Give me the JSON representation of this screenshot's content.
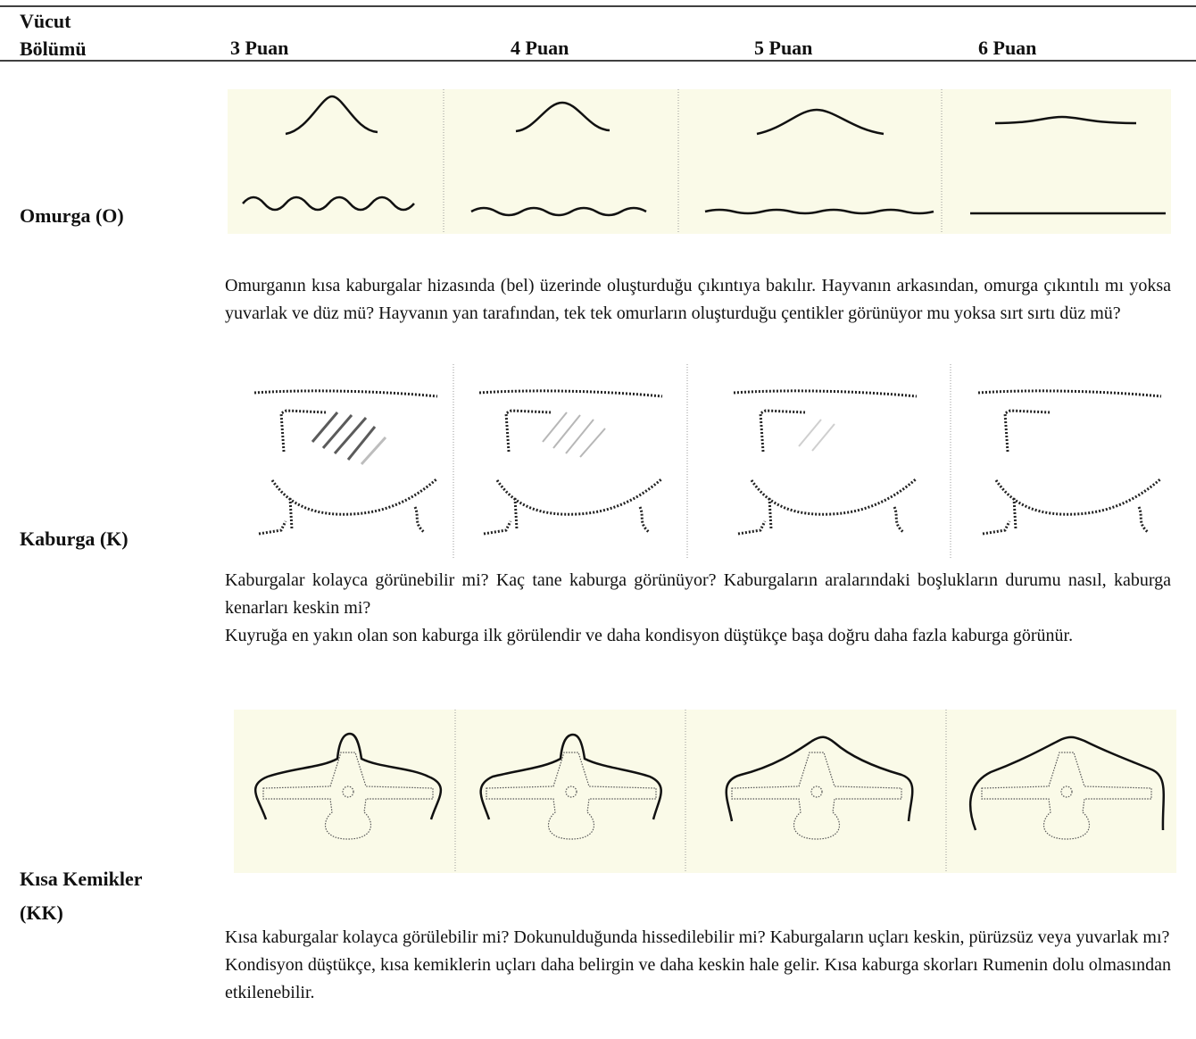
{
  "table": {
    "headers": [
      "Vücut Bölümü",
      "3 Puan",
      "4 Puan",
      "5 Puan",
      "6 Puan"
    ],
    "rows": [
      {
        "label": "Omurga (O)",
        "description": [
          "Omurganın kısa kaburgalar hizasında (bel) üzerinde oluşturduğu çıkıntıya bakılır. Hayvanın arkasından, omurga çıkıntılı mı yoksa yuvarlak ve düz mü? Hayvanın yan tarafından, tek tek omurların oluşturduğu çentikler görünüyor mu yoksa sırt sırtı düz mü?"
        ]
      },
      {
        "label": "Kaburga (K)",
        "description": [
          "Kaburgalar kolayca görünebilir mi? Kaç tane kaburga görünüyor? Kaburgaların aralarındaki boşlukların durumu nasıl, kaburga kenarları keskin mi?",
          "Kuyruğa en yakın olan son kaburga ilk görülendir ve daha kondisyon düştükçe başa doğru daha fazla kaburga görünür."
        ]
      },
      {
        "label": "Kısa Kemikler (KK)",
        "description": [
          "Kısa kaburgalar kolayca görülebilir mi? Dokunulduğunda hissedilebilir mi? Kaburgaların uçları keskin, pürüzsüz veya yuvarlak mı?",
          "Kondisyon düştükçe, kısa kemiklerin uçları daha belirgin ve daha keskin hale gelir. Kısa kaburga skorları Rumenin dolu olmasından etkilenebilir."
        ]
      }
    ]
  }
}
